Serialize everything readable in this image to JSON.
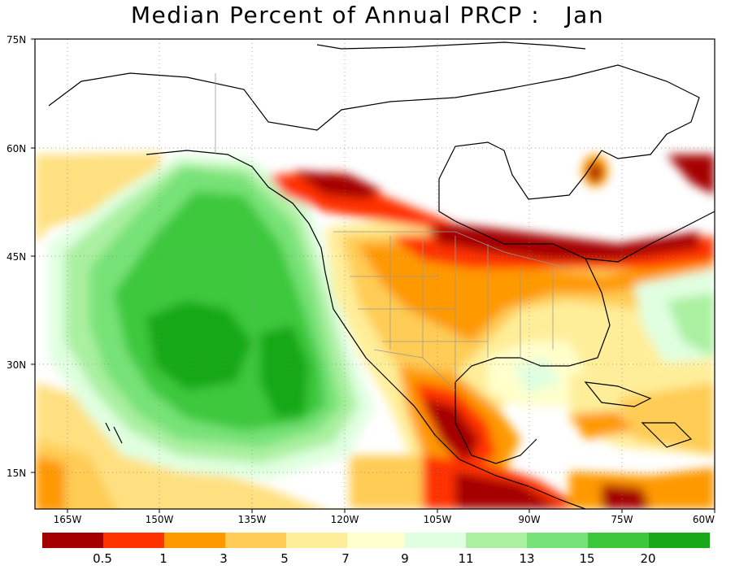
{
  "title": "Median Percent of Annual PRCP :   Jan",
  "map": {
    "lat_ticks": [
      "75N",
      "60N",
      "45N",
      "30N",
      "15N"
    ],
    "lon_ticks": [
      "165W",
      "150W",
      "135W",
      "120W",
      "105W",
      "90W",
      "75W",
      "60W"
    ],
    "grid": "dotted",
    "land_outline_color": "#000000",
    "border_color": "#999999",
    "ocean_base_color": "#ffffff"
  },
  "colorbar": {
    "low": {
      "colors": [
        "#a50000",
        "#ff3300",
        "#ff9900",
        "#ffcc55",
        "#ffee99",
        "#ffffcc"
      ],
      "labels": [
        "0.5",
        "1",
        "3",
        "5",
        "7"
      ]
    },
    "high": {
      "colors": [
        "#e0ffe0",
        "#aaf0a0",
        "#77e277",
        "#3cc83c",
        "#18a818"
      ],
      "labels": [
        "9",
        "11",
        "13",
        "15",
        "20"
      ]
    }
  }
}
